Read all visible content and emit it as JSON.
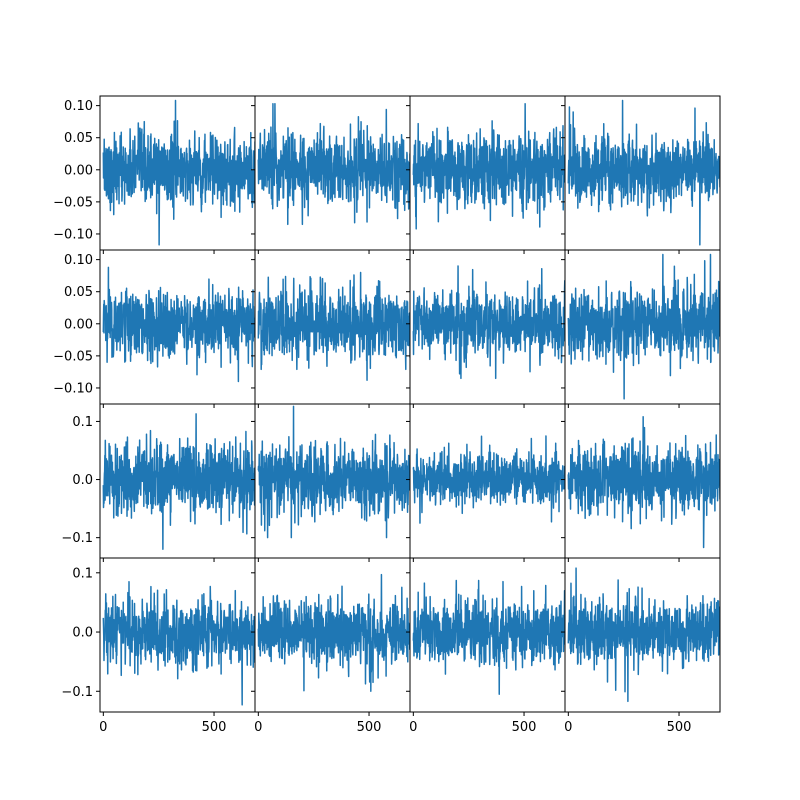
{
  "figure": {
    "line_color": "#1f77b4",
    "background": "#ffffff",
    "rows": 4,
    "cols": 4,
    "sharex": true,
    "sharey": "row"
  },
  "chart_data": {
    "type": "line",
    "n_points": 700,
    "xlim": [
      -15,
      685
    ],
    "xticks": [
      0,
      500
    ],
    "xtick_labels": [
      "0",
      "500"
    ],
    "grid": false,
    "legend": "none",
    "rows": [
      {
        "ylim": [
          -0.125,
          0.115
        ],
        "yticks": [
          -0.1,
          -0.05,
          0.0,
          0.05,
          0.1
        ],
        "ytick_labels": [
          "−0.10",
          "−0.05",
          "0.00",
          "0.05",
          "0.10"
        ],
        "panels": [
          {
            "ymin": -0.117,
            "ymax": 0.108,
            "noise": 0.028
          },
          {
            "ymin": -0.085,
            "ymax": 0.103,
            "noise": 0.028
          },
          {
            "ymin": -0.092,
            "ymax": 0.103,
            "noise": 0.028
          },
          {
            "ymin": -0.117,
            "ymax": 0.108,
            "noise": 0.028
          }
        ]
      },
      {
        "ylim": [
          -0.125,
          0.115
        ],
        "yticks": [
          -0.1,
          -0.05,
          0.0,
          0.05,
          0.1
        ],
        "ytick_labels": [
          "−0.10",
          "−0.05",
          "0.00",
          "0.05",
          "0.10"
        ],
        "panels": [
          {
            "ymin": -0.09,
            "ymax": 0.088,
            "noise": 0.026
          },
          {
            "ymin": -0.088,
            "ymax": 0.08,
            "noise": 0.026
          },
          {
            "ymin": -0.085,
            "ymax": 0.09,
            "noise": 0.026
          },
          {
            "ymin": -0.117,
            "ymax": 0.108,
            "noise": 0.028
          }
        ]
      },
      {
        "ylim": [
          -0.135,
          0.13
        ],
        "yticks": [
          -0.1,
          0.0,
          0.1
        ],
        "ytick_labels": [
          "−0.1",
          "0.0",
          "0.1"
        ],
        "panels": [
          {
            "ymin": -0.12,
            "ymax": 0.113,
            "noise": 0.03
          },
          {
            "ymin": -0.1,
            "ymax": 0.126,
            "noise": 0.03
          },
          {
            "ymin": -0.075,
            "ymax": 0.075,
            "noise": 0.022
          },
          {
            "ymin": -0.117,
            "ymax": 0.108,
            "noise": 0.028
          }
        ]
      },
      {
        "ylim": [
          -0.135,
          0.125
        ],
        "yticks": [
          -0.1,
          0.0,
          0.1
        ],
        "ytick_labels": [
          "−0.1",
          "0.0",
          "0.1"
        ],
        "panels": [
          {
            "ymin": -0.123,
            "ymax": 0.085,
            "noise": 0.028
          },
          {
            "ymin": -0.1,
            "ymax": 0.097,
            "noise": 0.028
          },
          {
            "ymin": -0.105,
            "ymax": 0.087,
            "noise": 0.027
          },
          {
            "ymin": -0.117,
            "ymax": 0.108,
            "noise": 0.028
          }
        ]
      }
    ]
  }
}
